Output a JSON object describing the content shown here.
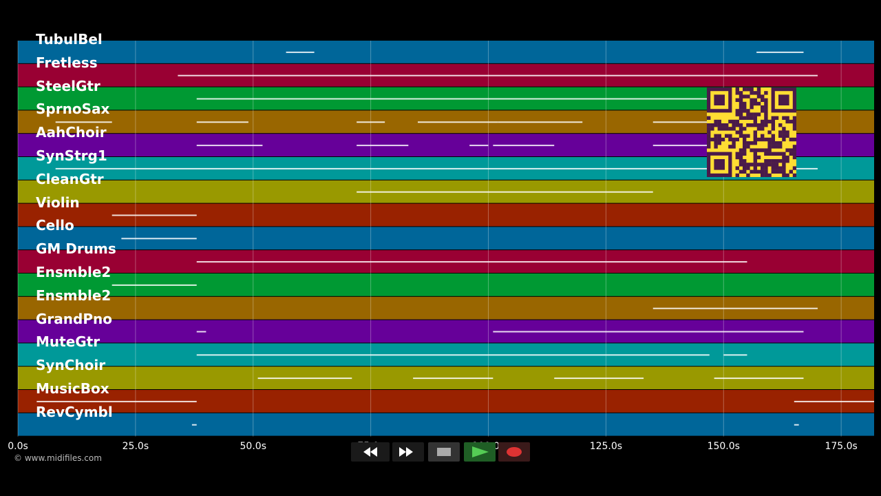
{
  "tracks": [
    {
      "name": "TubulBel",
      "color": "#006699"
    },
    {
      "name": "Fretless",
      "color": "#990033"
    },
    {
      "name": "SteelGtr",
      "color": "#009933"
    },
    {
      "name": "SprnoSax",
      "color": "#996600"
    },
    {
      "name": "AahChoir",
      "color": "#660099"
    },
    {
      "name": "SynStrg1",
      "color": "#009999"
    },
    {
      "name": "CleanGtr",
      "color": "#999900"
    },
    {
      "name": "Violin",
      "color": "#992200"
    },
    {
      "name": "Cello",
      "color": "#006699"
    },
    {
      "name": "GM Drums",
      "color": "#990033"
    },
    {
      "name": "Ensmble2",
      "color": "#009933"
    },
    {
      "name": "Ensmble2",
      "color": "#996600"
    },
    {
      "name": "GrandPno",
      "color": "#660099"
    },
    {
      "name": "MuteGtr",
      "color": "#009999"
    },
    {
      "name": "SynChoir",
      "color": "#999900"
    },
    {
      "name": "MusicBox",
      "color": "#992200"
    },
    {
      "name": "RevCymbl",
      "color": "#006699"
    }
  ],
  "timeline": {
    "ticks": [
      "0.0s",
      "25.0s",
      "50.0s",
      "75.0s",
      "100.0s",
      "125.0s",
      "150.0s",
      "175.0s"
    ],
    "tick_values": [
      0,
      25,
      50,
      75,
      100,
      125,
      150,
      175
    ],
    "max_seconds": 182
  },
  "notes": [
    [
      [
        57,
        63
      ],
      [
        157,
        167
      ]
    ],
    [
      [
        34,
        170
      ]
    ],
    [
      [
        38,
        147
      ]
    ],
    [
      [
        8,
        20
      ],
      [
        38,
        49
      ],
      [
        72,
        78
      ],
      [
        85,
        102
      ],
      [
        102,
        120
      ],
      [
        135,
        150
      ]
    ],
    [
      [
        38,
        52
      ],
      [
        72,
        83
      ],
      [
        96,
        100
      ],
      [
        101,
        114
      ],
      [
        135,
        152
      ]
    ],
    [
      [
        8,
        170
      ]
    ],
    [
      [
        72,
        135
      ]
    ],
    [
      [
        20,
        38
      ]
    ],
    [
      [
        22,
        38
      ]
    ],
    [
      [
        38,
        155
      ]
    ],
    [
      [
        20,
        38
      ]
    ],
    [
      [
        135,
        170
      ]
    ],
    [
      [
        38,
        40
      ],
      [
        101,
        167
      ]
    ],
    [
      [
        38,
        147
      ],
      [
        150,
        155
      ]
    ],
    [
      [
        51,
        71
      ],
      [
        84,
        101
      ],
      [
        114,
        133
      ],
      [
        148,
        167
      ]
    ],
    [
      [
        4,
        38
      ],
      [
        165,
        182
      ]
    ],
    [
      [
        37,
        38
      ],
      [
        165,
        166
      ]
    ]
  ],
  "copyright": "© www.midifiles.com",
  "transport": {
    "rewind": "rewind",
    "fast_forward": "fast-forward",
    "stop": "stop",
    "play": "play",
    "record": "record"
  },
  "colors": {
    "background": "#000000",
    "grid": "#ffffff",
    "note": "#ffffff",
    "qr_bg": "#ffdd33",
    "qr_fg": "#4a1a4a"
  }
}
